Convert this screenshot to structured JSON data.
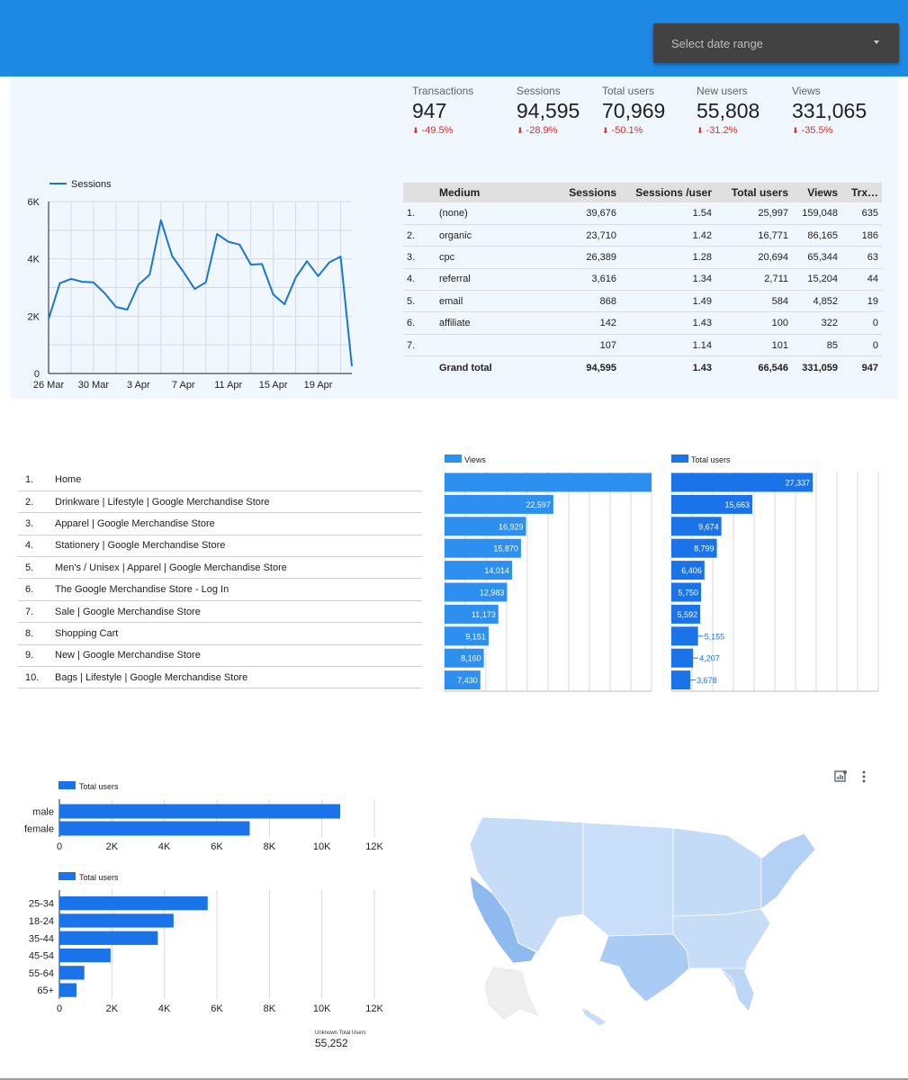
{
  "header": {
    "date_range_placeholder": "Select date range"
  },
  "kpis": [
    {
      "label": "Transactions",
      "value": "947",
      "delta": "-49.5%"
    },
    {
      "label": "Sessions",
      "value": "94,595",
      "delta": "-28.9%"
    },
    {
      "label": "Total users",
      "value": "70,969",
      "delta": "-50.1%"
    },
    {
      "label": "New users",
      "value": "55,808",
      "delta": "-31.2%"
    },
    {
      "label": "Views",
      "value": "331,065",
      "delta": "-35.5%"
    }
  ],
  "colors": {
    "header_blue": "#1e88e5",
    "series_blue": "#1976d2",
    "views_bar": "#2d8ff0",
    "users_bar": "#1a73e8",
    "negative_red": "#d93025",
    "panel_bg": "#f0f7fe"
  },
  "medium_table": {
    "headers": [
      "Medium",
      "Sessions",
      "Sessions /user",
      "Total users",
      "Views",
      "Trx…"
    ],
    "rows": [
      {
        "num": "1.",
        "medium": "(none)",
        "sessions": "39,676",
        "spu": "1.54",
        "users": "25,997",
        "views": "159,048",
        "trx": "635"
      },
      {
        "num": "2.",
        "medium": "organic",
        "sessions": "23,710",
        "spu": "1.42",
        "users": "16,771",
        "views": "86,165",
        "trx": "186"
      },
      {
        "num": "3.",
        "medium": "cpc",
        "sessions": "26,389",
        "spu": "1.28",
        "users": "20,694",
        "views": "65,344",
        "trx": "63"
      },
      {
        "num": "4.",
        "medium": "referral",
        "sessions": "3,616",
        "spu": "1.34",
        "users": "2,711",
        "views": "15,204",
        "trx": "44"
      },
      {
        "num": "5.",
        "medium": "email",
        "sessions": "868",
        "spu": "1.49",
        "users": "584",
        "views": "4,852",
        "trx": "19"
      },
      {
        "num": "6.",
        "medium": "affiliate",
        "sessions": "142",
        "spu": "1.43",
        "users": "100",
        "views": "322",
        "trx": "0"
      },
      {
        "num": "7.",
        "medium": "",
        "sessions": "107",
        "spu": "1.14",
        "users": "101",
        "views": "85",
        "trx": "0"
      }
    ],
    "total": {
      "label": "Grand total",
      "sessions": "94,595",
      "spu": "1.43",
      "users": "66,546",
      "views": "331,059",
      "trx": "947"
    }
  },
  "pages_table": {
    "rows": [
      {
        "num": "1.",
        "title": "Home"
      },
      {
        "num": "2.",
        "title": "Drinkware | Lifestyle | Google Merchandise Store"
      },
      {
        "num": "3.",
        "title": "Apparel | Google Merchandise Store"
      },
      {
        "num": "4.",
        "title": "Stationery | Google Merchandise Store"
      },
      {
        "num": "5.",
        "title": "Men's / Unisex | Apparel | Google Merchandise Store"
      },
      {
        "num": "6.",
        "title": "The Google Merchandise Store - Log In"
      },
      {
        "num": "7.",
        "title": "Sale | Google Merchandise Store"
      },
      {
        "num": "8.",
        "title": "Shopping Cart"
      },
      {
        "num": "9.",
        "title": "New | Google Merchandise Store"
      },
      {
        "num": "10.",
        "title": "Bags | Lifestyle | Google Merchandise Store"
      }
    ]
  },
  "chart_data": [
    {
      "type": "line",
      "legend": "Sessions",
      "legend_position": "top-left",
      "ylim": [
        0,
        6000
      ],
      "y_ticks": [
        "0",
        "2K",
        "4K",
        "6K"
      ],
      "x_ticks": [
        "26 Mar",
        "30 Mar",
        "3 Apr",
        "7 Apr",
        "11 Apr",
        "15 Apr",
        "19 Apr"
      ],
      "x": [
        "26 Mar",
        "27 Mar",
        "28 Mar",
        "29 Mar",
        "30 Mar",
        "31 Mar",
        "1 Apr",
        "2 Apr",
        "3 Apr",
        "4 Apr",
        "5 Apr",
        "6 Apr",
        "7 Apr",
        "8 Apr",
        "9 Apr",
        "10 Apr",
        "11 Apr",
        "12 Apr",
        "13 Apr",
        "14 Apr",
        "15 Apr",
        "16 Apr",
        "17 Apr",
        "18 Apr",
        "19 Apr",
        "20 Apr",
        "21 Apr",
        "22 Apr"
      ],
      "values": [
        1900,
        3150,
        3300,
        3200,
        3180,
        2800,
        2320,
        2230,
        3100,
        3450,
        5350,
        4100,
        3550,
        2950,
        3180,
        4870,
        4600,
        4500,
        3800,
        3820,
        2760,
        2420,
        3350,
        3920,
        3400,
        3880,
        4080,
        250
      ],
      "grid": true
    },
    {
      "type": "bar",
      "orientation": "horizontal",
      "legend": "Views",
      "categories": [
        "Home",
        "Drinkware | Lifestyle | Google Merchandise Store",
        "Apparel | Google Merchandise Store",
        "Stationery | Google Merchandise Store",
        "Men's / Unisex | Apparel | Google Merchandise Store",
        "The Google Merchandise Store - Log In",
        "Sale | Google Merchandise Store",
        "Shopping Cart",
        "New | Google Merchandise Store",
        "Bags | Lifestyle | Google Merchandise Store"
      ],
      "values": [
        43000,
        22597,
        16929,
        15870,
        14014,
        12983,
        11173,
        9151,
        8160,
        7430
      ],
      "labels": [
        "",
        "22,597",
        "16,929",
        "15,870",
        "14,014",
        "12,983",
        "11,173",
        "9,151",
        "8,160",
        "7,430"
      ],
      "xlim": [
        0,
        43000
      ],
      "grid": true
    },
    {
      "type": "bar",
      "orientation": "horizontal",
      "legend": "Total users",
      "categories": [
        "Home",
        "Drinkware | Lifestyle | Google Merchandise Store",
        "Apparel | Google Merchandise Store",
        "Stationery | Google Merchandise Store",
        "Men's / Unisex | Apparel | Google Merchandise Store",
        "The Google Merchandise Store - Log In",
        "Sale | Google Merchandise Store",
        "Shopping Cart",
        "New | Google Merchandise Store",
        "Bags | Lifestyle | Google Merchandise Store"
      ],
      "values": [
        27337,
        15663,
        9674,
        8799,
        6406,
        5750,
        5592,
        5155,
        4207,
        3678
      ],
      "labels": [
        "27,337",
        "15,663",
        "9,674",
        "8,799",
        "6,406",
        "5,750",
        "5,592",
        "5,155",
        "4,207",
        "3,678"
      ],
      "xlim": [
        0,
        40000
      ],
      "grid": true
    },
    {
      "type": "bar",
      "orientation": "horizontal",
      "legend": "Total users",
      "categories": [
        "male",
        "female"
      ],
      "values": [
        10700,
        7250
      ],
      "xlim": [
        0,
        12000
      ],
      "x_ticks": [
        "0",
        "2K",
        "4K",
        "6K",
        "8K",
        "10K",
        "12K"
      ],
      "grid": true
    },
    {
      "type": "bar",
      "orientation": "horizontal",
      "legend": "Total users",
      "categories": [
        "25-34",
        "18-24",
        "35-44",
        "45-54",
        "55-64",
        "65+"
      ],
      "values": [
        5650,
        4350,
        3750,
        1950,
        950,
        650
      ],
      "xlim": [
        0,
        12000
      ],
      "x_ticks": [
        "0",
        "2K",
        "4K",
        "6K",
        "8K",
        "10K",
        "12K"
      ],
      "grid": true
    }
  ],
  "unknown_users": {
    "label": "Unknown Total Users",
    "value": "55,252"
  },
  "map": {
    "icons": [
      "chart-insights-icon",
      "more-vert-icon"
    ]
  }
}
